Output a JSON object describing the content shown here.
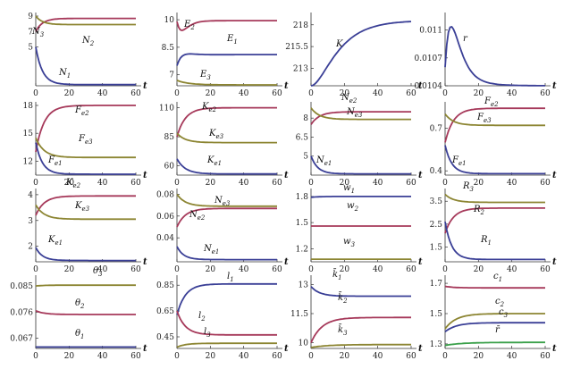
{
  "chart_data": [
    {
      "id": "p11",
      "type": "line",
      "xlabel": "t",
      "xlim": [
        0,
        60
      ],
      "ylim": [
        0,
        9
      ],
      "xticks": [
        "0",
        "20",
        "40",
        "60"
      ],
      "yticks": [
        {
          "v": 9,
          "t": "9"
        },
        {
          "v": 7,
          "t": "7"
        },
        {
          "v": 5,
          "t": "5"
        }
      ],
      "series": [
        {
          "name": "N3",
          "label": "N",
          "sub": "3",
          "color": "#a6395a",
          "start": 7,
          "end": 8.7,
          "peak": null,
          "k": 0.25
        },
        {
          "name": "N2",
          "label": "N",
          "sub": "2",
          "color": "#8c8532",
          "start": 9,
          "end": 7.9,
          "peak": null,
          "k": 0.25
        },
        {
          "name": "N1",
          "label": "N",
          "sub": "1",
          "color": "#3a3f96",
          "start": 5,
          "end": 0.15,
          "peak": null,
          "k": 0.25
        }
      ]
    },
    {
      "id": "p12",
      "type": "line",
      "xlabel": "t",
      "xlim": [
        0,
        60
      ],
      "ylim": [
        6.4,
        10.2
      ],
      "xticks": [
        "0",
        "20",
        "40",
        "60"
      ],
      "yticks": [
        {
          "v": 10,
          "t": "10"
        },
        {
          "v": 8.5,
          "t": "8.5"
        },
        {
          "v": 7,
          "t": "7"
        }
      ],
      "series": [
        {
          "name": "E2",
          "label": "E",
          "sub": "2",
          "color": "#a6395a",
          "start": 9.9,
          "end": 9.95,
          "dip": 9.4,
          "k": 0.2
        },
        {
          "name": "E1",
          "label": "E",
          "sub": "1",
          "color": "#3a3f96",
          "start": 7.5,
          "end": 8.1,
          "peak": 8.4,
          "k": 0.15
        },
        {
          "name": "E3",
          "label": "E",
          "sub": "3",
          "color": "#8c8532",
          "start": 6.7,
          "end": 6.45,
          "peak": null,
          "k": 0.15
        }
      ]
    },
    {
      "id": "p13",
      "type": "line",
      "xlabel": "t",
      "xlim": [
        0,
        60
      ],
      "ylim": [
        211,
        219
      ],
      "xticks": [
        "0",
        "20",
        "40",
        "60"
      ],
      "yticks": [
        {
          "v": 218,
          "t": "218"
        },
        {
          "v": 215.5,
          "t": "215.5"
        },
        {
          "v": 213,
          "t": "213"
        }
      ],
      "series": [
        {
          "name": "K",
          "label": "K",
          "sub": "",
          "color": "#3a3f96",
          "start": 211,
          "end": 218.5,
          "peak": null,
          "k": 0.08,
          "sigmoid": true
        }
      ]
    },
    {
      "id": "p14",
      "type": "line",
      "xlabel": "t",
      "xlim": [
        0,
        60
      ],
      "ylim": [
        0.0104,
        0.01115
      ],
      "xticks": [
        "0",
        "20",
        "40",
        "60"
      ],
      "yticks": [
        {
          "v": 0.011,
          "t": "0.011"
        },
        {
          "v": 0.0107,
          "t": "0.0107"
        },
        {
          "v": 0.0104,
          "t": "0.0104"
        }
      ],
      "series": [
        {
          "name": "r",
          "label": "r",
          "sub": "",
          "color": "#3a3f96",
          "start": 0.0106,
          "end": 0.0104,
          "peak": 0.0111,
          "k": 0.09
        }
      ]
    },
    {
      "id": "p21",
      "type": "line",
      "xlabel": "t",
      "xlim": [
        0,
        60
      ],
      "ylim": [
        10.5,
        18
      ],
      "xticks": [
        "0",
        "20",
        "40",
        "60"
      ],
      "yticks": [
        {
          "v": 18,
          "t": "18"
        },
        {
          "v": 15,
          "t": "15"
        },
        {
          "v": 12,
          "t": "12"
        }
      ],
      "series": [
        {
          "name": "Fe2",
          "label": "F",
          "sub": "e2",
          "color": "#a6395a",
          "start": 13,
          "end": 18,
          "peak": null,
          "k": 0.2
        },
        {
          "name": "Fe3",
          "label": "F",
          "sub": "e3",
          "color": "#8c8532",
          "start": 14.5,
          "end": 12.4,
          "peak": null,
          "k": 0.2
        },
        {
          "name": "Fe1",
          "label": "F",
          "sub": "e1",
          "color": "#3a3f96",
          "start": 14,
          "end": 10.6,
          "peak": null,
          "k": 0.25
        }
      ]
    },
    {
      "id": "p22",
      "type": "line",
      "xlabel": "t",
      "xlim": [
        0,
        60
      ],
      "ylim": [
        52,
        112
      ],
      "xticks": [
        "0",
        "20",
        "40",
        "60"
      ],
      "yticks": [
        {
          "v": 110,
          "t": "110"
        },
        {
          "v": 85,
          "t": "85"
        },
        {
          "v": 60,
          "t": "60"
        }
      ],
      "series": [
        {
          "name": "Ke2",
          "label": "K",
          "sub": "e2",
          "color": "#a6395a",
          "start": 85,
          "end": 110,
          "peak": null,
          "k": 0.2
        },
        {
          "name": "Ke3",
          "label": "K",
          "sub": "e3",
          "color": "#8c8532",
          "start": 88,
          "end": 80,
          "peak": null,
          "k": 0.2
        },
        {
          "name": "Ke1",
          "label": "K",
          "sub": "e1",
          "color": "#3a3f96",
          "start": 66,
          "end": 53,
          "peak": null,
          "k": 0.2
        }
      ]
    },
    {
      "id": "p23",
      "type": "line",
      "xlabel": "t",
      "xlim": [
        0,
        60
      ],
      "ylim": [
        3.5,
        9
      ],
      "xticks": [
        "0",
        "20",
        "40",
        "60"
      ],
      "yticks": [
        {
          "v": 8,
          "t": "8"
        },
        {
          "v": 6.5,
          "t": "6.5"
        },
        {
          "v": 5,
          "t": "5"
        }
      ],
      "series": [
        {
          "name": "Ne2",
          "label": "N",
          "sub": "e2",
          "color": "#a6395a",
          "start": 7.5,
          "end": 8.5,
          "peak": null,
          "k": 0.2
        },
        {
          "name": "Ne3",
          "label": "N",
          "sub": "e3",
          "color": "#8c8532",
          "start": 8.8,
          "end": 7.9,
          "peak": null,
          "k": 0.2
        },
        {
          "name": "Ne1",
          "label": "N",
          "sub": "e1",
          "color": "#3a3f96",
          "start": 5,
          "end": 3.6,
          "peak": null,
          "k": 0.25
        }
      ]
    },
    {
      "id": "p24",
      "type": "line",
      "xlabel": "t",
      "xlim": [
        0,
        60
      ],
      "ylim": [
        0.37,
        0.86
      ],
      "xticks": [
        "0",
        "20",
        "40",
        "60"
      ],
      "yticks": [
        {
          "v": 0.7,
          "t": "0.7"
        },
        {
          "v": 0.4,
          "t": "0.4"
        }
      ],
      "series": [
        {
          "name": "Fe2b",
          "label": "F",
          "sub": "e2",
          "color": "#a6395a",
          "start": 0.6,
          "end": 0.84,
          "peak": null,
          "k": 0.2
        },
        {
          "name": "Fe3b",
          "label": "F",
          "sub": "e3",
          "color": "#8c8532",
          "start": 0.8,
          "end": 0.72,
          "peak": null,
          "k": 0.2
        },
        {
          "name": "Fe1b",
          "label": "F",
          "sub": "e1",
          "color": "#3a3f96",
          "start": 0.58,
          "end": 0.38,
          "peak": null,
          "k": 0.25
        }
      ]
    },
    {
      "id": "p31",
      "type": "line",
      "xlabel": "t",
      "xlim": [
        0,
        60
      ],
      "ylim": [
        1.4,
        4.1
      ],
      "xticks": [
        "0",
        "20",
        "40",
        "60"
      ],
      "yticks": [
        {
          "v": 4,
          "t": "4"
        },
        {
          "v": 3,
          "t": "3"
        },
        {
          "v": 2,
          "t": "2"
        }
      ],
      "series": [
        {
          "name": "Ke2c",
          "label": "K",
          "sub": "e2",
          "color": "#a6395a",
          "start": 3.2,
          "end": 3.95,
          "peak": null,
          "k": 0.2
        },
        {
          "name": "Ke3c",
          "label": "K",
          "sub": "e3",
          "color": "#8c8532",
          "start": 3.6,
          "end": 3.05,
          "peak": null,
          "k": 0.2
        },
        {
          "name": "Ke1c",
          "label": "K",
          "sub": "e1",
          "color": "#3a3f96",
          "start": 1.95,
          "end": 1.45,
          "peak": null,
          "k": 0.25
        }
      ]
    },
    {
      "id": "p32",
      "type": "line",
      "xlabel": "t",
      "xlim": [
        0,
        60
      ],
      "ylim": [
        0.018,
        0.082
      ],
      "xticks": [
        "0",
        "20",
        "40",
        "60"
      ],
      "yticks": [
        {
          "v": 0.08,
          "t": "0.08"
        },
        {
          "v": 0.06,
          "t": "0.06"
        },
        {
          "v": 0.04,
          "t": "0.04"
        }
      ],
      "series": [
        {
          "name": "Ne3d",
          "label": "N",
          "sub": "e3",
          "color": "#8c8532",
          "start": 0.08,
          "end": 0.069,
          "peak": null,
          "k": 0.2
        },
        {
          "name": "Ne2d",
          "label": "N",
          "sub": "e2",
          "color": "#a6395a",
          "start": 0.05,
          "end": 0.067,
          "peak": null,
          "k": 0.2
        },
        {
          "name": "Ne1d",
          "label": "N",
          "sub": "e1",
          "color": "#3a3f96",
          "start": 0.032,
          "end": 0.02,
          "peak": null,
          "k": 0.25
        }
      ]
    },
    {
      "id": "p33",
      "type": "line",
      "xlabel": "t",
      "xlim": [
        0,
        60
      ],
      "ylim": [
        1.05,
        1.85
      ],
      "xticks": [
        "0",
        "20",
        "40",
        "60"
      ],
      "yticks": [
        {
          "v": 1.8,
          "t": "1.8"
        },
        {
          "v": 1.5,
          "t": "1.5"
        },
        {
          "v": 1.2,
          "t": "1.2"
        }
      ],
      "series": [
        {
          "name": "w1",
          "label": "w",
          "sub": "1",
          "color": "#3a3f96",
          "start": 1.79,
          "end": 1.8,
          "peak": null,
          "k": 0.2
        },
        {
          "name": "w2",
          "label": "w",
          "sub": "2",
          "color": "#a6395a",
          "start": 1.46,
          "end": 1.46,
          "peak": null,
          "k": 0.2
        },
        {
          "name": "w3",
          "label": "w",
          "sub": "3",
          "color": "#8c8532",
          "start": 1.08,
          "end": 1.08,
          "peak": null,
          "k": 0.2
        }
      ]
    },
    {
      "id": "p34",
      "type": "line",
      "xlabel": "t",
      "xlim": [
        0,
        60
      ],
      "ylim": [
        0.85,
        3.9
      ],
      "xticks": [
        "0",
        "20",
        "40",
        "60"
      ],
      "yticks": [
        {
          "v": 3.5,
          "t": "3.5"
        },
        {
          "v": 2.5,
          "t": "2.5"
        },
        {
          "v": 1.5,
          "t": "1.5"
        }
      ],
      "series": [
        {
          "name": "R3",
          "label": "R",
          "sub": "3",
          "color": "#8c8532",
          "start": 3.8,
          "end": 3.45,
          "peak": null,
          "k": 0.2
        },
        {
          "name": "R2",
          "label": "R",
          "sub": "2",
          "color": "#a6395a",
          "start": 2.1,
          "end": 3.2,
          "peak": null,
          "k": 0.2
        },
        {
          "name": "R1",
          "label": "R",
          "sub": "1",
          "color": "#3a3f96",
          "start": 2.6,
          "end": 0.95,
          "peak": null,
          "k": 0.25
        }
      ]
    },
    {
      "id": "p41",
      "type": "line",
      "xlabel": "t",
      "xlim": [
        0,
        60
      ],
      "ylim": [
        0.0635,
        0.0875
      ],
      "xticks": [
        "0",
        "20",
        "40",
        "60"
      ],
      "yticks": [
        {
          "v": 0.085,
          "t": "0.085"
        },
        {
          "v": 0.076,
          "t": "0.076"
        },
        {
          "v": 0.067,
          "t": "0.067"
        }
      ],
      "series": [
        {
          "name": "theta3",
          "label": "θ",
          "sub": "3",
          "color": "#8c8532",
          "start": 0.085,
          "end": 0.0853,
          "peak": null,
          "k": 0.2
        },
        {
          "name": "theta2",
          "label": "θ",
          "sub": "2",
          "color": "#a6395a",
          "start": 0.0765,
          "end": 0.0752,
          "peak": null,
          "k": 0.2
        },
        {
          "name": "theta1",
          "label": "θ",
          "sub": "1",
          "color": "#3a3f96",
          "start": 0.064,
          "end": 0.064,
          "peak": null,
          "k": 0.2
        }
      ]
    },
    {
      "id": "p42",
      "type": "line",
      "xlabel": "t",
      "xlim": [
        0,
        60
      ],
      "ylim": [
        0.36,
        0.9
      ],
      "xticks": [
        "0",
        "20",
        "40",
        "60"
      ],
      "yticks": [
        {
          "v": 0.85,
          "t": "0.85"
        },
        {
          "v": 0.65,
          "t": "0.65"
        },
        {
          "v": 0.45,
          "t": "0.45"
        }
      ],
      "series": [
        {
          "name": "l1",
          "label": "l",
          "sub": "1",
          "color": "#3a3f96",
          "start": 0.62,
          "end": 0.86,
          "peak": null,
          "k": 0.2
        },
        {
          "name": "l2",
          "label": "l",
          "sub": "2",
          "color": "#a6395a",
          "start": 0.65,
          "end": 0.465,
          "peak": null,
          "k": 0.2
        },
        {
          "name": "l3",
          "label": "l",
          "sub": "3",
          "color": "#8c8532",
          "start": 0.37,
          "end": 0.4,
          "peak": null,
          "k": 0.2
        }
      ]
    },
    {
      "id": "p43",
      "type": "line",
      "xlabel": "t",
      "xlim": [
        0,
        60
      ],
      "ylim": [
        9.7,
        13.3
      ],
      "xticks": [
        "0",
        "20",
        "40",
        "60"
      ],
      "yticks": [
        {
          "v": 13,
          "t": "13"
        },
        {
          "v": 11.5,
          "t": "11.5"
        },
        {
          "v": 10,
          "t": "10"
        }
      ],
      "series": [
        {
          "name": "k1",
          "label": "k̄",
          "sub": "1",
          "color": "#3a3f96",
          "start": 12.9,
          "end": 12.4,
          "peak": null,
          "k": 0.2
        },
        {
          "name": "k2",
          "label": "k̄",
          "sub": "2",
          "color": "#a6395a",
          "start": 10,
          "end": 11.3,
          "peak": null,
          "k": 0.15
        },
        {
          "name": "k3",
          "label": "k̄",
          "sub": "3",
          "color": "#8c8532",
          "start": 9.75,
          "end": 9.9,
          "peak": null,
          "k": 0.1
        }
      ]
    },
    {
      "id": "p44",
      "type": "line",
      "xlabel": "t",
      "xlim": [
        0,
        60
      ],
      "ylim": [
        1.27,
        1.73
      ],
      "xticks": [
        "0",
        "20",
        "40",
        "60"
      ],
      "yticks": [
        {
          "v": 1.7,
          "t": "1.7"
        },
        {
          "v": 1.5,
          "t": "1.5"
        },
        {
          "v": 1.3,
          "t": "1.3"
        }
      ],
      "series": [
        {
          "name": "c1",
          "label": "c",
          "sub": "1",
          "color": "#a6395a",
          "start": 1.68,
          "end": 1.67,
          "peak": null,
          "k": 0.2
        },
        {
          "name": "c2",
          "label": "c",
          "sub": "2",
          "color": "#8c8532",
          "start": 1.4,
          "end": 1.5,
          "peak": null,
          "k": 0.15
        },
        {
          "name": "c3",
          "label": "c",
          "sub": "3",
          "color": "#3a3f96",
          "start": 1.38,
          "end": 1.44,
          "peak": null,
          "k": 0.15
        },
        {
          "name": "rbar",
          "label": "r̄",
          "sub": "",
          "color": "#3aa04a",
          "start": 1.29,
          "end": 1.31,
          "peak": null,
          "k": 0.1
        }
      ]
    }
  ]
}
